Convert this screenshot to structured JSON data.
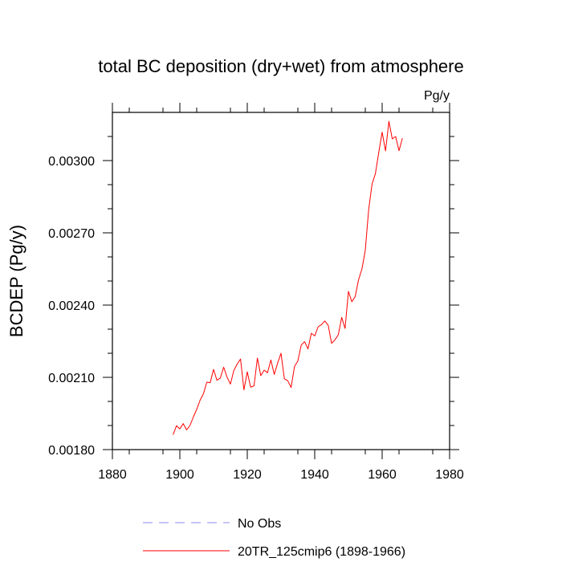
{
  "chart_data": {
    "type": "line",
    "title": "total BC deposition (dry+wet) from atmosphere",
    "units_label": "Pg/y",
    "xlabel": "",
    "ylabel": "BCDEP  (Pg/y)",
    "xlim": [
      1880,
      1980
    ],
    "ylim": [
      0.0018,
      0.0032
    ],
    "x_ticks": [
      1880,
      1900,
      1920,
      1940,
      1960,
      1980
    ],
    "x_tick_labels": [
      "1880",
      "1900",
      "1920",
      "1940",
      "1960",
      "1980"
    ],
    "y_ticks": [
      0.0018,
      0.0021,
      0.0024,
      0.0027,
      0.003
    ],
    "y_tick_labels": [
      "0.00180",
      "0.00210",
      "0.00240",
      "0.00270",
      "0.00300"
    ],
    "grid": false,
    "legend_position": "bottom",
    "series": [
      {
        "name": "20TR_125cmip6 (1898-1966)",
        "color": "#ff0000",
        "style": "solid",
        "x": [
          1898,
          1899,
          1900,
          1901,
          1902,
          1903,
          1904,
          1905,
          1906,
          1907,
          1908,
          1909,
          1910,
          1911,
          1912,
          1913,
          1914,
          1915,
          1916,
          1917,
          1918,
          1919,
          1920,
          1921,
          1922,
          1923,
          1924,
          1925,
          1926,
          1927,
          1928,
          1929,
          1930,
          1931,
          1932,
          1933,
          1934,
          1935,
          1936,
          1937,
          1938,
          1939,
          1940,
          1941,
          1942,
          1943,
          1944,
          1945,
          1946,
          1947,
          1948,
          1949,
          1950,
          1951,
          1952,
          1953,
          1954,
          1955,
          1956,
          1957,
          1958,
          1959,
          1960,
          1961,
          1962,
          1963,
          1964,
          1965,
          1966
        ],
        "values": [
          0.001862,
          0.001899,
          0.001886,
          0.001908,
          0.001882,
          0.0019,
          0.001935,
          0.001967,
          0.002005,
          0.002032,
          0.00208,
          0.002078,
          0.002133,
          0.002088,
          0.002097,
          0.002142,
          0.002101,
          0.002072,
          0.002128,
          0.002155,
          0.002176,
          0.002048,
          0.002123,
          0.002059,
          0.002065,
          0.00218,
          0.002107,
          0.00213,
          0.002119,
          0.002172,
          0.002112,
          0.002159,
          0.0022,
          0.002094,
          0.002086,
          0.002058,
          0.002145,
          0.002168,
          0.002234,
          0.002248,
          0.002218,
          0.002283,
          0.002272,
          0.00231,
          0.002319,
          0.002334,
          0.002316,
          0.002241,
          0.002256,
          0.002277,
          0.002349,
          0.002303,
          0.002457,
          0.002414,
          0.002435,
          0.002505,
          0.00255,
          0.002628,
          0.002797,
          0.002902,
          0.002946,
          0.003035,
          0.003118,
          0.00304,
          0.003163,
          0.00309,
          0.0031,
          0.003041,
          0.003093
        ]
      },
      {
        "name": "No Obs",
        "color": "#8c8cf0",
        "style": "dashed",
        "x": [],
        "values": []
      }
    ]
  }
}
